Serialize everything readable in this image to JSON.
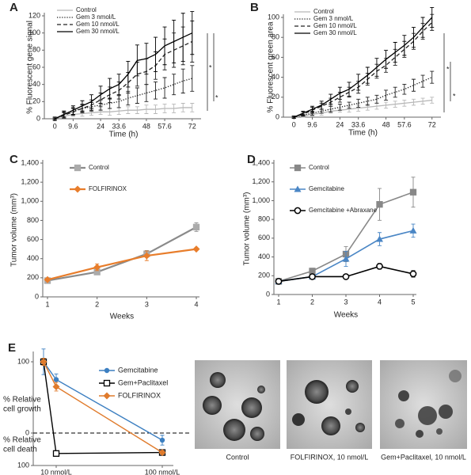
{
  "chart_data": [
    {
      "type": "line",
      "panel": "A",
      "x_label": "Time (h)",
      "y_label": "% Fluorescent gene signal",
      "x": [
        0,
        4.8,
        9.6,
        14.4,
        19.2,
        24,
        28.8,
        33.6,
        38.4,
        43.2,
        48,
        52.8,
        57.6,
        62.4,
        67.2,
        72
      ],
      "xlim": [
        -3,
        75
      ],
      "xticks": [
        0,
        9.6,
        24,
        33.6,
        48,
        57.6,
        72
      ],
      "ylim": [
        0,
        120
      ],
      "yticks": [
        0,
        20,
        40,
        60,
        80,
        100,
        120
      ],
      "series": [
        {
          "name": "Control",
          "color": "#b8b8b8",
          "dash": "solid",
          "values": [
            0,
            3,
            5,
            6,
            7,
            8,
            8,
            9,
            10,
            10,
            11,
            11,
            12,
            12,
            13,
            13
          ],
          "errors": [
            1,
            2,
            2,
            3,
            3,
            3,
            4,
            4,
            4,
            4,
            5,
            5,
            5,
            5,
            5,
            5
          ]
        },
        {
          "name": "Gem 3 nmol/L",
          "color": "#222222",
          "dash": "dotted",
          "values": [
            0,
            5,
            9,
            12,
            14,
            16,
            18,
            20,
            24,
            27,
            30,
            33,
            36,
            40,
            44,
            47
          ],
          "errors": [
            1,
            3,
            4,
            4,
            5,
            6,
            6,
            7,
            8,
            9,
            10,
            10,
            12,
            12,
            14,
            15
          ]
        },
        {
          "name": "Gem 10 nmol/L",
          "color": "#222222",
          "dash": "dashed",
          "values": [
            0,
            4,
            8,
            12,
            16,
            22,
            28,
            33,
            42,
            52,
            55,
            62,
            75,
            80,
            85,
            90
          ],
          "errors": [
            1,
            3,
            4,
            5,
            6,
            8,
            9,
            10,
            12,
            14,
            15,
            16,
            18,
            20,
            22,
            24
          ]
        },
        {
          "name": "Gem 30 nmol/L",
          "color": "#000000",
          "dash": "solid",
          "values": [
            0,
            5,
            10,
            15,
            20,
            28,
            35,
            40,
            52,
            68,
            70,
            75,
            85,
            90,
            95,
            100
          ],
          "errors": [
            2,
            4,
            5,
            6,
            8,
            10,
            12,
            12,
            15,
            18,
            18,
            20,
            22,
            25,
            28,
            25
          ]
        }
      ],
      "annotations": [
        "*",
        "*"
      ]
    },
    {
      "type": "line",
      "panel": "B",
      "x_label": "Time (h)",
      "y_label": "% Fluorescent green area",
      "x": [
        0,
        4.8,
        9.6,
        14.4,
        19.2,
        24,
        28.8,
        33.6,
        38.4,
        43.2,
        48,
        52.8,
        57.6,
        62.4,
        67.2,
        72
      ],
      "xlim": [
        -3,
        75
      ],
      "xticks": [
        0,
        9.6,
        24,
        33.6,
        48,
        57.6,
        72
      ],
      "ylim": [
        0,
        100
      ],
      "yticks": [
        0,
        20,
        40,
        60,
        80,
        100
      ],
      "series": [
        {
          "name": "Control",
          "color": "#b8b8b8",
          "dash": "solid",
          "values": [
            0,
            1,
            3,
            4,
            6,
            7,
            8,
            9,
            10,
            11,
            12,
            13,
            14,
            15,
            16,
            17
          ],
          "errors": [
            1,
            1,
            2,
            2,
            2,
            2,
            3,
            3,
            3,
            3,
            3,
            3,
            3,
            3,
            3,
            3
          ]
        },
        {
          "name": "Gem 3 nmol/L",
          "color": "#222222",
          "dash": "dotted",
          "values": [
            0,
            2,
            4,
            6,
            8,
            10,
            12,
            14,
            16,
            18,
            22,
            25,
            28,
            32,
            36,
            40
          ],
          "errors": [
            1,
            1,
            2,
            2,
            3,
            3,
            3,
            4,
            4,
            4,
            5,
            5,
            5,
            6,
            6,
            6
          ]
        },
        {
          "name": "Gem 10 nmol/L",
          "color": "#222222",
          "dash": "dashed",
          "values": [
            0,
            3,
            7,
            11,
            15,
            20,
            25,
            30,
            38,
            46,
            52,
            60,
            68,
            76,
            86,
            95
          ],
          "errors": [
            1,
            2,
            3,
            3,
            4,
            5,
            5,
            6,
            6,
            7,
            7,
            8,
            8,
            8,
            8,
            8
          ]
        },
        {
          "name": "Gem 30 nmol/L",
          "color": "#000000",
          "dash": "solid",
          "values": [
            0,
            4,
            8,
            12,
            18,
            24,
            28,
            35,
            42,
            50,
            58,
            65,
            72,
            80,
            90,
            100
          ],
          "errors": [
            1,
            2,
            3,
            4,
            5,
            6,
            7,
            8,
            8,
            9,
            9,
            10,
            10,
            10,
            10,
            10
          ]
        }
      ],
      "annotations": [
        "*",
        "*"
      ]
    },
    {
      "type": "line",
      "panel": "C",
      "x_label": "Weeks",
      "y_label": "Tumor volume (mm³)",
      "x": [
        1,
        2,
        3,
        4
      ],
      "xlim": [
        1,
        4
      ],
      "xticks": [
        1,
        2,
        3,
        4
      ],
      "ylim": [
        0,
        1400
      ],
      "yticks": [
        0,
        200,
        400,
        600,
        800,
        {
          "value": 1000,
          "label": "1,000"
        },
        {
          "value": 1200,
          "label": "1,200"
        },
        {
          "value": 1400,
          "label": "1,400"
        }
      ],
      "series": [
        {
          "name": "Control",
          "color": "#8a8a8a",
          "marker": "square",
          "marker_color": "#ababab",
          "values": [
            170,
            260,
            450,
            730
          ],
          "errors": [
            15,
            20,
            35,
            45
          ]
        },
        {
          "name": "FOLFIRINOX",
          "color": "#e87d2b",
          "marker": "diamond",
          "marker_color": "#e87d2b",
          "values": [
            180,
            310,
            430,
            500
          ],
          "errors": [
            15,
            35,
            50,
            0
          ]
        }
      ]
    },
    {
      "type": "line",
      "panel": "D",
      "x_label": "Weeks",
      "y_label": "Tumor volume (mm³)",
      "x": [
        1,
        2,
        3,
        4,
        5
      ],
      "xlim": [
        1,
        5
      ],
      "xticks": [
        1,
        2,
        3,
        4,
        5
      ],
      "ylim": [
        0,
        1400
      ],
      "yticks": [
        0,
        200,
        400,
        600,
        800,
        {
          "value": 1000,
          "label": "1,000"
        },
        {
          "value": 1200,
          "label": "1,200"
        },
        {
          "value": 1400,
          "label": "1,400"
        }
      ],
      "series": [
        {
          "name": "Control",
          "color": "#888888",
          "marker": "square",
          "marker_color": "#888888",
          "values": [
            140,
            250,
            430,
            960,
            1090
          ],
          "errors": [
            10,
            30,
            80,
            170,
            160
          ]
        },
        {
          "name": "Gemcitabine",
          "color": "#4a86c5",
          "marker": "triangle",
          "marker_color": "#4a86c5",
          "values": [
            140,
            190,
            380,
            590,
            680
          ],
          "errors": [
            10,
            25,
            80,
            70,
            70
          ]
        },
        {
          "name": "Gemcitabine +Abraxane",
          "color": "#000000",
          "marker": "circle-open",
          "marker_color": "#000000",
          "values": [
            140,
            190,
            190,
            300,
            220
          ],
          "errors": [
            10,
            15,
            15,
            30,
            35
          ]
        }
      ]
    },
    {
      "type": "line",
      "panel": "E",
      "y_labels": [
        [
          "% Relative",
          "cell growth"
        ],
        [
          "% Relative",
          "cell death"
        ]
      ],
      "categories": [
        null,
        "10 nmol/L",
        "100 nmol/L"
      ],
      "ylim": [
        -100,
        110
      ],
      "yticks": [
        {
          "value": -100,
          "label": "100"
        },
        0,
        100
      ],
      "zero_line": true,
      "series": [
        {
          "name": "Gemcitabine",
          "color": "#3c7fc1",
          "marker": "circle",
          "marker_color": "#3c7fc1",
          "values": [
            100,
            75,
            -22
          ],
          "errors": [
            18,
            8,
            15
          ]
        },
        {
          "name": "Gem+Paclitaxel",
          "color": "#000000",
          "marker": "square-open",
          "marker_color": "#000000",
          "values": [
            100,
            -63,
            -60
          ],
          "errors": [
            0,
            3,
            3
          ]
        },
        {
          "name": "FOLFIRINOX",
          "color": "#e07b2c",
          "marker": "diamond",
          "marker_color": "#e07b2c",
          "values": [
            100,
            65,
            -60
          ],
          "errors": [
            5,
            6,
            4
          ]
        }
      ]
    }
  ],
  "images": [
    {
      "caption": "Control"
    },
    {
      "caption": "FOLFIRINOX, 10 nmol/L"
    },
    {
      "caption": "Gem+Paclitaxel, 10 nmol/L"
    }
  ]
}
